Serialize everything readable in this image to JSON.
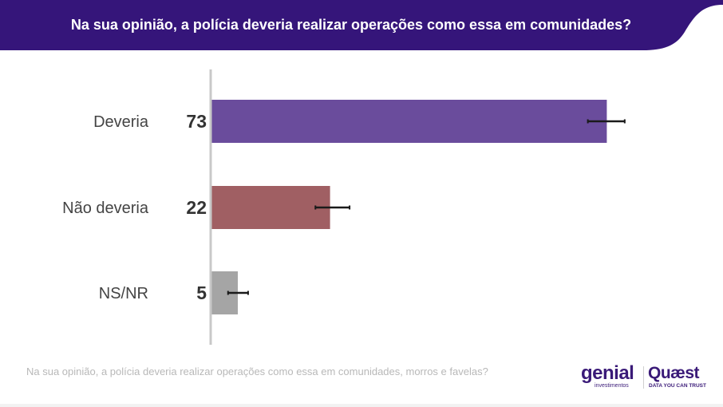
{
  "header": {
    "title": "Na sua opinião, a polícia deveria realizar operações como essa em comunidades?",
    "background_color": "#35157a"
  },
  "chart_data": {
    "type": "bar",
    "orientation": "horizontal",
    "title": "Na sua opinião, a polícia deveria realizar operações como essa em comunidades?",
    "categories": [
      "Deveria",
      "Não deveria",
      "NS/NR"
    ],
    "values": [
      73,
      22,
      5
    ],
    "value_labels": [
      "73",
      "22",
      "5"
    ],
    "colors": [
      "#6a4c9c",
      "#a05f63",
      "#a5a5a5"
    ],
    "error_bars": [
      {
        "low": 69.5,
        "high": 76.3
      },
      {
        "low": 19.3,
        "high": 25.6
      },
      {
        "low": 3.2,
        "high": 6.9
      }
    ],
    "xlim": [
      0,
      100
    ],
    "xlabel": "",
    "ylabel": "",
    "grid": false,
    "legend": "none"
  },
  "footnote": "Na sua opinião, a polícia deveria realizar operações como essa em comunidades, morros e favelas?",
  "logos": {
    "genial": "genial",
    "genial_sub": "investimentos",
    "quaest": "Quæst",
    "quaest_sub": "DATA YOU CAN TRUST"
  }
}
